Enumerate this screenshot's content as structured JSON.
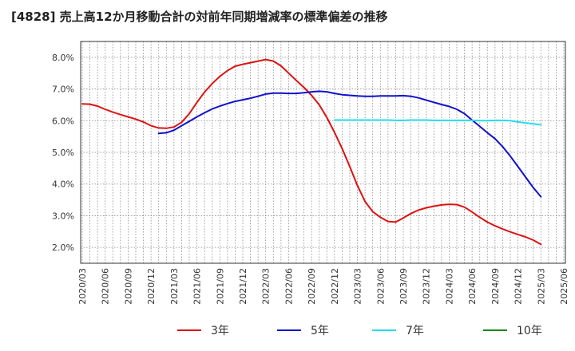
{
  "chart_data": {
    "type": "line",
    "title": "[4828]  売上高12か月移動合計の対前年同期増減率の標準偏差の推移",
    "xlabel": "",
    "ylabel": "",
    "x_tick_labels": [
      "2020/03",
      "2020/06",
      "2020/09",
      "2020/12",
      "2021/03",
      "2021/06",
      "2021/09",
      "2021/12",
      "2022/03",
      "2022/06",
      "2022/09",
      "2022/12",
      "2023/03",
      "2023/06",
      "2023/09",
      "2023/12",
      "2024/03",
      "2024/06",
      "2024/09",
      "2024/12",
      "2025/03",
      "2025/06"
    ],
    "y_tick_labels": [
      "2.0%",
      "3.0%",
      "4.0%",
      "5.0%",
      "6.0%",
      "7.0%",
      "8.0%"
    ],
    "ylim": [
      1.5,
      8.5
    ],
    "grid": true,
    "legend_position": "bottom",
    "colors": {
      "3年": "#dd1111",
      "5年": "#1111cc",
      "7年": "#22ddee",
      "10年": "#118811"
    },
    "series": [
      {
        "name": "3年",
        "x": [
          "2020/03",
          "2020/04",
          "2020/05",
          "2020/06",
          "2020/07",
          "2020/08",
          "2020/09",
          "2020/10",
          "2020/11",
          "2020/12",
          "2021/01",
          "2021/02",
          "2021/03",
          "2021/04",
          "2021/05",
          "2021/06",
          "2021/07",
          "2021/08",
          "2021/09",
          "2021/10",
          "2021/11",
          "2021/12",
          "2022/01",
          "2022/02",
          "2022/03",
          "2022/04",
          "2022/05",
          "2022/06",
          "2022/07",
          "2022/08",
          "2022/09",
          "2022/10",
          "2022/11",
          "2022/12",
          "2023/01",
          "2023/02",
          "2023/03",
          "2023/04",
          "2023/05",
          "2023/06",
          "2023/07",
          "2023/08",
          "2023/09",
          "2023/10",
          "2023/11",
          "2023/12",
          "2024/01",
          "2024/02",
          "2024/03",
          "2024/04",
          "2024/05",
          "2024/06",
          "2024/07",
          "2024/08",
          "2024/09",
          "2024/10",
          "2024/11",
          "2024/12",
          "2025/01",
          "2025/02",
          "2025/03"
        ],
        "values": [
          6.53,
          6.52,
          6.46,
          6.36,
          6.27,
          6.19,
          6.12,
          6.05,
          5.96,
          5.84,
          5.77,
          5.76,
          5.8,
          5.95,
          6.22,
          6.58,
          6.9,
          7.17,
          7.4,
          7.58,
          7.72,
          7.78,
          7.83,
          7.88,
          7.93,
          7.88,
          7.73,
          7.5,
          7.27,
          7.05,
          6.8,
          6.5,
          6.1,
          5.63,
          5.12,
          4.55,
          3.95,
          3.45,
          3.13,
          2.95,
          2.82,
          2.8,
          2.93,
          3.07,
          3.18,
          3.25,
          3.3,
          3.34,
          3.36,
          3.35,
          3.27,
          3.12,
          2.95,
          2.8,
          2.68,
          2.58,
          2.49,
          2.41,
          2.33,
          2.23,
          2.1
        ]
      },
      {
        "name": "5年",
        "x": [
          "2021/01",
          "2021/02",
          "2021/03",
          "2021/04",
          "2021/05",
          "2021/06",
          "2021/07",
          "2021/08",
          "2021/09",
          "2021/10",
          "2021/11",
          "2021/12",
          "2022/01",
          "2022/02",
          "2022/03",
          "2022/04",
          "2022/05",
          "2022/06",
          "2022/07",
          "2022/08",
          "2022/09",
          "2022/10",
          "2022/11",
          "2022/12",
          "2023/01",
          "2023/02",
          "2023/03",
          "2023/04",
          "2023/05",
          "2023/06",
          "2023/07",
          "2023/08",
          "2023/09",
          "2023/10",
          "2023/11",
          "2023/12",
          "2024/01",
          "2024/02",
          "2024/03",
          "2024/04",
          "2024/05",
          "2024/06",
          "2024/07",
          "2024/08",
          "2024/09",
          "2024/10",
          "2024/11",
          "2024/12",
          "2025/01",
          "2025/02",
          "2025/03"
        ],
        "values": [
          5.6,
          5.62,
          5.7,
          5.84,
          5.98,
          6.12,
          6.25,
          6.37,
          6.46,
          6.54,
          6.61,
          6.66,
          6.71,
          6.77,
          6.84,
          6.87,
          6.87,
          6.86,
          6.86,
          6.88,
          6.91,
          6.93,
          6.91,
          6.86,
          6.82,
          6.8,
          6.78,
          6.77,
          6.77,
          6.78,
          6.78,
          6.78,
          6.79,
          6.77,
          6.72,
          6.65,
          6.58,
          6.51,
          6.45,
          6.36,
          6.22,
          6.02,
          5.82,
          5.62,
          5.43,
          5.18,
          4.88,
          4.55,
          4.22,
          3.89,
          3.6
        ]
      },
      {
        "name": "7年",
        "x": [
          "2022/12",
          "2023/01",
          "2023/02",
          "2023/03",
          "2023/04",
          "2023/05",
          "2023/06",
          "2023/07",
          "2023/08",
          "2023/09",
          "2023/10",
          "2023/11",
          "2023/12",
          "2024/01",
          "2024/02",
          "2024/03",
          "2024/04",
          "2024/05",
          "2024/06",
          "2024/07",
          "2024/08",
          "2024/09",
          "2024/10",
          "2024/11",
          "2024/12",
          "2025/01",
          "2025/02",
          "2025/03"
        ],
        "values": [
          6.02,
          6.02,
          6.02,
          6.02,
          6.02,
          6.02,
          6.02,
          6.02,
          6.01,
          6.01,
          6.02,
          6.02,
          6.02,
          6.01,
          6.01,
          6.01,
          6.01,
          6.01,
          6.01,
          6.0,
          6.0,
          6.01,
          6.01,
          6.0,
          5.96,
          5.93,
          5.9,
          5.87
        ]
      },
      {
        "name": "10年",
        "x": [],
        "values": []
      }
    ]
  }
}
